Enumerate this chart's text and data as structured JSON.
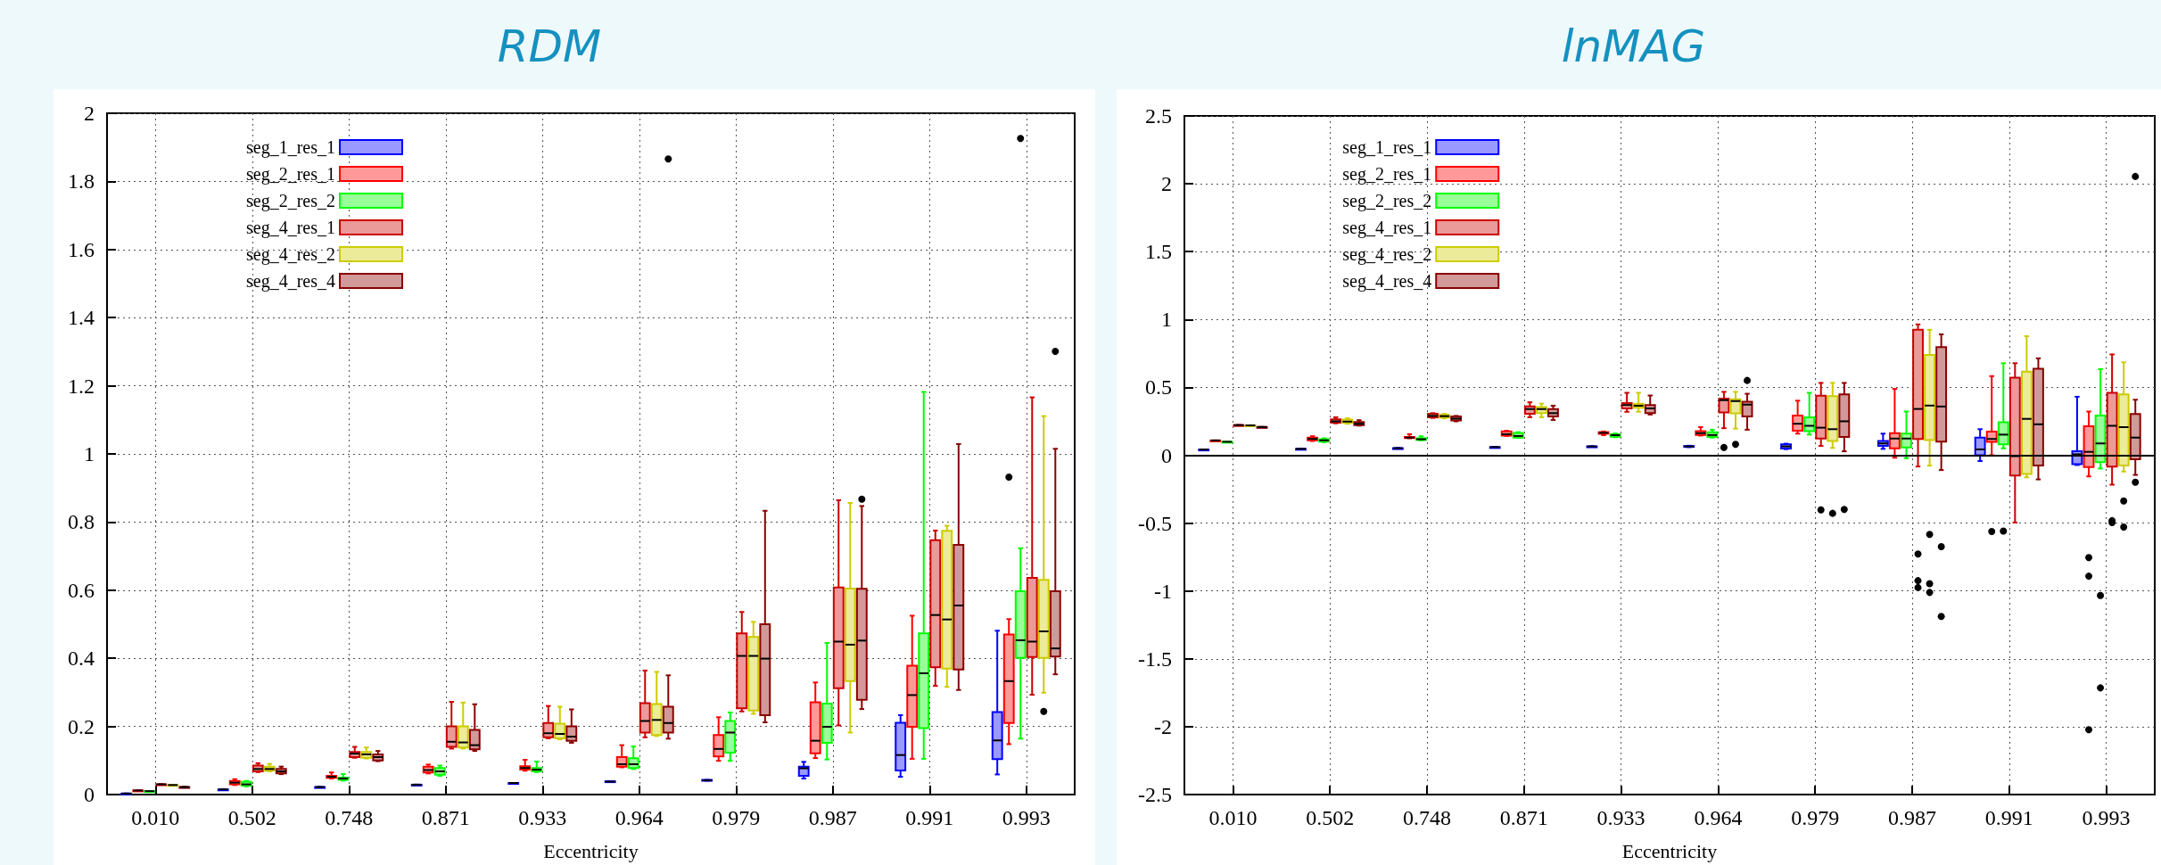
{
  "chart_data": [
    {
      "type": "box",
      "title": "RDM",
      "xlabel": "Eccentricity",
      "categories": [
        "0.010",
        "0.502",
        "0.748",
        "0.871",
        "0.933",
        "0.964",
        "0.979",
        "0.987",
        "0.991",
        "0.993"
      ],
      "ylim": [
        0,
        2
      ],
      "yticks": [
        0,
        0.2,
        0.4,
        0.6,
        0.8,
        1,
        1.2,
        1.4,
        1.6,
        1.8,
        2
      ],
      "grid": true,
      "legend": "top left",
      "series": [
        {
          "name": "seg_1_res_1",
          "color": "#0000ff",
          "boxes": [
            {
              "low": 0.003,
              "q1": 0.003,
              "median": 0.003,
              "q3": 0.003,
              "high": 0.003
            },
            {
              "low": 0.015,
              "q1": 0.015,
              "median": 0.015,
              "q3": 0.015,
              "high": 0.015
            },
            {
              "low": 0.022,
              "q1": 0.022,
              "median": 0.022,
              "q3": 0.022,
              "high": 0.022
            },
            {
              "low": 0.029,
              "q1": 0.029,
              "median": 0.029,
              "q3": 0.029,
              "high": 0.029
            },
            {
              "low": 0.034,
              "q1": 0.034,
              "median": 0.034,
              "q3": 0.034,
              "high": 0.034
            },
            {
              "low": 0.037,
              "q1": 0.037,
              "median": 0.038,
              "q3": 0.039,
              "high": 0.039
            },
            {
              "low": 0.041,
              "q1": 0.041,
              "median": 0.042,
              "q3": 0.043,
              "high": 0.043
            },
            {
              "low": 0.047,
              "q1": 0.055,
              "median": 0.077,
              "q3": 0.082,
              "high": 0.096
            },
            {
              "low": 0.052,
              "q1": 0.071,
              "median": 0.116,
              "q3": 0.211,
              "high": 0.233
            },
            {
              "low": 0.059,
              "q1": 0.104,
              "median": 0.159,
              "q3": 0.242,
              "high": 0.481
            }
          ]
        },
        {
          "name": "seg_2_res_1",
          "color": "#ff0000",
          "boxes": [
            {
              "low": 0.012,
              "q1": 0.012,
              "median": 0.012,
              "q3": 0.012,
              "high": 0.012
            },
            {
              "low": 0.028,
              "q1": 0.03,
              "median": 0.035,
              "q3": 0.04,
              "high": 0.045
            },
            {
              "low": 0.047,
              "q1": 0.049,
              "median": 0.052,
              "q3": 0.055,
              "high": 0.065
            },
            {
              "low": 0.062,
              "q1": 0.065,
              "median": 0.072,
              "q3": 0.082,
              "high": 0.088
            },
            {
              "low": 0.07,
              "q1": 0.073,
              "median": 0.078,
              "q3": 0.083,
              "high": 0.102
            },
            {
              "low": 0.08,
              "q1": 0.082,
              "median": 0.089,
              "q3": 0.11,
              "high": 0.145
            },
            {
              "low": 0.099,
              "q1": 0.112,
              "median": 0.134,
              "q3": 0.175,
              "high": 0.227
            },
            {
              "low": 0.107,
              "q1": 0.121,
              "median": 0.158,
              "q3": 0.271,
              "high": 0.329
            },
            {
              "low": 0.105,
              "q1": 0.199,
              "median": 0.292,
              "q3": 0.378,
              "high": 0.525
            },
            {
              "low": 0.148,
              "q1": 0.21,
              "median": 0.333,
              "q3": 0.47,
              "high": 0.515,
              "outliers": [
                0.932
              ]
            }
          ]
        },
        {
          "name": "seg_2_res_2",
          "color": "#00ff00",
          "boxes": [
            {
              "low": 0.01,
              "q1": 0.01,
              "median": 0.01,
              "q3": 0.01,
              "high": 0.01
            },
            {
              "low": 0.024,
              "q1": 0.026,
              "median": 0.03,
              "q3": 0.037,
              "high": 0.04
            },
            {
              "low": 0.041,
              "q1": 0.043,
              "median": 0.047,
              "q3": 0.05,
              "high": 0.06
            },
            {
              "low": 0.055,
              "q1": 0.058,
              "median": 0.068,
              "q3": 0.078,
              "high": 0.085
            },
            {
              "low": 0.066,
              "q1": 0.068,
              "median": 0.073,
              "q3": 0.078,
              "high": 0.097
            },
            {
              "low": 0.075,
              "q1": 0.078,
              "median": 0.089,
              "q3": 0.107,
              "high": 0.141
            },
            {
              "low": 0.099,
              "q1": 0.123,
              "median": 0.182,
              "q3": 0.216,
              "high": 0.241
            },
            {
              "low": 0.103,
              "q1": 0.152,
              "median": 0.199,
              "q3": 0.267,
              "high": 0.445
            },
            {
              "low": 0.105,
              "q1": 0.195,
              "median": 0.356,
              "q3": 0.473,
              "high": 1.182
            },
            {
              "low": 0.164,
              "q1": 0.401,
              "median": 0.453,
              "q3": 0.597,
              "high": 0.723,
              "outliers": [
                1.926
              ]
            }
          ]
        },
        {
          "name": "seg_4_res_1",
          "color": "#cc0000",
          "boxes": [
            {
              "low": 0.03,
              "q1": 0.03,
              "median": 0.03,
              "q3": 0.03,
              "high": 0.03
            },
            {
              "low": 0.066,
              "q1": 0.068,
              "median": 0.075,
              "q3": 0.085,
              "high": 0.092
            },
            {
              "low": 0.108,
              "q1": 0.11,
              "median": 0.12,
              "q3": 0.125,
              "high": 0.14
            },
            {
              "low": 0.135,
              "q1": 0.14,
              "median": 0.155,
              "q3": 0.2,
              "high": 0.272
            },
            {
              "low": 0.165,
              "q1": 0.168,
              "median": 0.18,
              "q3": 0.21,
              "high": 0.26
            },
            {
              "low": 0.168,
              "q1": 0.182,
              "median": 0.216,
              "q3": 0.268,
              "high": 0.364
            },
            {
              "low": 0.244,
              "q1": 0.253,
              "median": 0.407,
              "q3": 0.473,
              "high": 0.536
            },
            {
              "low": 0.203,
              "q1": 0.312,
              "median": 0.449,
              "q3": 0.608,
              "high": 0.864
            },
            {
              "low": 0.319,
              "q1": 0.374,
              "median": 0.527,
              "q3": 0.747,
              "high": 0.775
            },
            {
              "low": 0.293,
              "q1": 0.404,
              "median": 0.449,
              "q3": 0.636,
              "high": 1.166
            }
          ]
        },
        {
          "name": "seg_4_res_2",
          "color": "#cccc00",
          "boxes": [
            {
              "low": 0.028,
              "q1": 0.028,
              "median": 0.028,
              "q3": 0.028,
              "high": 0.028
            },
            {
              "low": 0.068,
              "q1": 0.07,
              "median": 0.075,
              "q3": 0.082,
              "high": 0.09
            },
            {
              "low": 0.106,
              "q1": 0.108,
              "median": 0.118,
              "q3": 0.125,
              "high": 0.138
            },
            {
              "low": 0.135,
              "q1": 0.138,
              "median": 0.153,
              "q3": 0.2,
              "high": 0.27
            },
            {
              "low": 0.162,
              "q1": 0.165,
              "median": 0.178,
              "q3": 0.208,
              "high": 0.258
            },
            {
              "low": 0.172,
              "q1": 0.175,
              "median": 0.219,
              "q3": 0.266,
              "high": 0.36
            },
            {
              "low": 0.237,
              "q1": 0.247,
              "median": 0.407,
              "q3": 0.463,
              "high": 0.507
            },
            {
              "low": 0.182,
              "q1": 0.333,
              "median": 0.44,
              "q3": 0.605,
              "high": 0.856
            },
            {
              "low": 0.316,
              "q1": 0.37,
              "median": 0.514,
              "q3": 0.774,
              "high": 0.789
            },
            {
              "low": 0.299,
              "q1": 0.401,
              "median": 0.479,
              "q3": 0.63,
              "high": 1.111,
              "outliers": [
                0.244
              ]
            }
          ]
        },
        {
          "name": "seg_4_res_4",
          "color": "#8b0000",
          "boxes": [
            {
              "low": 0.022,
              "q1": 0.022,
              "median": 0.022,
              "q3": 0.022,
              "high": 0.022
            },
            {
              "low": 0.06,
              "q1": 0.062,
              "median": 0.068,
              "q3": 0.075,
              "high": 0.082
            },
            {
              "low": 0.098,
              "q1": 0.1,
              "median": 0.11,
              "q3": 0.118,
              "high": 0.128
            },
            {
              "low": 0.128,
              "q1": 0.133,
              "median": 0.145,
              "q3": 0.19,
              "high": 0.265
            },
            {
              "low": 0.152,
              "q1": 0.158,
              "median": 0.17,
              "q3": 0.2,
              "high": 0.25
            },
            {
              "low": 0.164,
              "q1": 0.182,
              "median": 0.21,
              "q3": 0.258,
              "high": 0.35,
              "outliers": [
                1.866
              ]
            },
            {
              "low": 0.212,
              "q1": 0.233,
              "median": 0.399,
              "q3": 0.5,
              "high": 0.833
            },
            {
              "low": 0.251,
              "q1": 0.278,
              "median": 0.452,
              "q3": 0.604,
              "high": 0.847,
              "outliers": [
                0.867
              ]
            },
            {
              "low": 0.307,
              "q1": 0.367,
              "median": 0.555,
              "q3": 0.733,
              "high": 1.029
            },
            {
              "low": 0.353,
              "q1": 0.405,
              "median": 0.429,
              "q3": 0.597,
              "high": 1.015,
              "outliers": [
                1.301
              ]
            }
          ]
        }
      ]
    },
    {
      "type": "box",
      "title": "lnMAG",
      "xlabel": "Eccentricity",
      "categories": [
        "0.010",
        "0.502",
        "0.748",
        "0.871",
        "0.933",
        "0.964",
        "0.979",
        "0.987",
        "0.991",
        "0.993"
      ],
      "ylim": [
        -2.5,
        2.5
      ],
      "yticks": [
        -2.5,
        -2,
        -1.5,
        -1,
        -0.5,
        0,
        0.5,
        1,
        1.5,
        2,
        2.5
      ],
      "grid": true,
      "legend": "top left",
      "ref_lines": [
        {
          "axis": "y",
          "value": 0,
          "color": "#000000",
          "line_style": "solid"
        }
      ],
      "series": [
        {
          "name": "seg_1_res_1",
          "color": "#0000ff",
          "boxes": [
            {
              "low": 0.042,
              "q1": 0.042,
              "median": 0.042,
              "q3": 0.042,
              "high": 0.042
            },
            {
              "low": 0.047,
              "q1": 0.047,
              "median": 0.047,
              "q3": 0.047,
              "high": 0.047
            },
            {
              "low": 0.052,
              "q1": 0.052,
              "median": 0.052,
              "q3": 0.052,
              "high": 0.052
            },
            {
              "low": 0.06,
              "q1": 0.06,
              "median": 0.06,
              "q3": 0.06,
              "high": 0.06
            },
            {
              "low": 0.065,
              "q1": 0.065,
              "median": 0.065,
              "q3": 0.065,
              "high": 0.065
            },
            {
              "low": 0.06,
              "q1": 0.062,
              "median": 0.065,
              "q3": 0.068,
              "high": 0.07
            },
            {
              "low": 0.045,
              "q1": 0.05,
              "median": 0.065,
              "q3": 0.08,
              "high": 0.085
            },
            {
              "low": 0.047,
              "q1": 0.069,
              "median": 0.087,
              "q3": 0.105,
              "high": 0.159
            },
            {
              "low": -0.043,
              "q1": 0,
              "median": 0.043,
              "q3": 0.13,
              "high": 0.192
            },
            {
              "low": -0.072,
              "q1": -0.065,
              "median": 0.007,
              "q3": 0.029,
              "high": 0.431
            }
          ]
        },
        {
          "name": "seg_2_res_1",
          "color": "#ff0000",
          "boxes": [
            {
              "low": 0.109,
              "q1": 0.109,
              "median": 0.109,
              "q3": 0.109,
              "high": 0.109
            },
            {
              "low": 0.105,
              "q1": 0.11,
              "median": 0.12,
              "q3": 0.13,
              "high": 0.14
            },
            {
              "low": 0.125,
              "q1": 0.127,
              "median": 0.13,
              "q3": 0.135,
              "high": 0.155
            },
            {
              "low": 0.143,
              "q1": 0.145,
              "median": 0.155,
              "q3": 0.175,
              "high": 0.18
            },
            {
              "low": 0.148,
              "q1": 0.158,
              "median": 0.165,
              "q3": 0.17,
              "high": 0.175
            },
            {
              "low": 0.145,
              "q1": 0.149,
              "median": 0.163,
              "q3": 0.178,
              "high": 0.207
            },
            {
              "low": 0.159,
              "q1": 0.181,
              "median": 0.232,
              "q3": 0.293,
              "high": 0.402
            },
            {
              "low": -0.018,
              "q1": 0.051,
              "median": 0.123,
              "q3": 0.163,
              "high": 0.489
            },
            {
              "low": 0,
              "q1": 0.098,
              "median": 0.12,
              "q3": 0.174,
              "high": 0.583,
              "outliers": [
                -0.562
              ]
            },
            {
              "low": -0.156,
              "q1": -0.087,
              "median": 0.025,
              "q3": 0.214,
              "high": 0.322,
              "outliers": [
                -0.754,
                -0.891,
                -2.022
              ]
            }
          ]
        },
        {
          "name": "seg_2_res_2",
          "color": "#00ff00",
          "boxes": [
            {
              "low": 0.099,
              "q1": 0.099,
              "median": 0.099,
              "q3": 0.099,
              "high": 0.099
            },
            {
              "low": 0.097,
              "q1": 0.1,
              "median": 0.11,
              "q3": 0.118,
              "high": 0.125
            },
            {
              "low": 0.11,
              "q1": 0.113,
              "median": 0.118,
              "q3": 0.125,
              "high": 0.14
            },
            {
              "low": 0.128,
              "q1": 0.13,
              "median": 0.142,
              "q3": 0.165,
              "high": 0.17
            },
            {
              "low": 0.133,
              "q1": 0.137,
              "median": 0.148,
              "q3": 0.155,
              "high": 0.16
            },
            {
              "low": 0.13,
              "q1": 0.134,
              "median": 0.149,
              "q3": 0.17,
              "high": 0.188
            },
            {
              "low": 0.152,
              "q1": 0.178,
              "median": 0.217,
              "q3": 0.279,
              "high": 0.46
            },
            {
              "low": -0.022,
              "q1": 0.058,
              "median": 0.123,
              "q3": 0.159,
              "high": 0.322
            },
            {
              "low": 0.051,
              "q1": 0.08,
              "median": 0.152,
              "q3": 0.243,
              "high": 0.678,
              "outliers": [
                -0.558
              ]
            },
            {
              "low": -0.098,
              "q1": -0.051,
              "median": 0.087,
              "q3": 0.293,
              "high": 0.634,
              "outliers": [
                -1.033,
                -1.714
              ]
            }
          ]
        },
        {
          "name": "seg_4_res_1",
          "color": "#cc0000",
          "boxes": [
            {
              "low": 0.222,
              "q1": 0.222,
              "median": 0.222,
              "q3": 0.222,
              "high": 0.222
            },
            {
              "low": 0.235,
              "q1": 0.24,
              "median": 0.25,
              "q3": 0.265,
              "high": 0.28
            },
            {
              "low": 0.275,
              "q1": 0.28,
              "median": 0.29,
              "q3": 0.305,
              "high": 0.31
            },
            {
              "low": 0.28,
              "q1": 0.305,
              "median": 0.34,
              "q3": 0.36,
              "high": 0.39
            },
            {
              "low": 0.32,
              "q1": 0.345,
              "median": 0.37,
              "q3": 0.385,
              "high": 0.46
            },
            {
              "low": 0.199,
              "q1": 0.315,
              "median": 0.406,
              "q3": 0.417,
              "high": 0.467,
              "outliers": [
                0.058
              ]
            },
            {
              "low": 0.069,
              "q1": 0.123,
              "median": 0.203,
              "q3": 0.438,
              "high": 0.533,
              "outliers": [
                -0.402
              ]
            },
            {
              "low": -0.083,
              "q1": 0.12,
              "median": 0.341,
              "q3": 0.924,
              "high": 0.964,
              "outliers": [
                -0.728,
                -0.924,
                -0.975
              ]
            },
            {
              "low": -0.496,
              "q1": -0.149,
              "median": -0.007,
              "q3": 0.572,
              "high": 0.678
            },
            {
              "low": -0.217,
              "q1": -0.083,
              "median": 0.217,
              "q3": 0.46,
              "high": 0.743,
              "outliers": [
                -0.482,
                -0.496
              ]
            }
          ]
        },
        {
          "name": "seg_4_res_2",
          "color": "#cccc00",
          "boxes": [
            {
              "low": 0.22,
              "q1": 0.22,
              "median": 0.22,
              "q3": 0.22,
              "high": 0.22
            },
            {
              "low": 0.232,
              "q1": 0.238,
              "median": 0.248,
              "q3": 0.262,
              "high": 0.272
            },
            {
              "low": 0.272,
              "q1": 0.278,
              "median": 0.288,
              "q3": 0.298,
              "high": 0.305
            },
            {
              "low": 0.28,
              "q1": 0.31,
              "median": 0.34,
              "q3": 0.355,
              "high": 0.38
            },
            {
              "low": 0.32,
              "q1": 0.35,
              "median": 0.365,
              "q3": 0.38,
              "high": 0.46
            },
            {
              "low": 0.196,
              "q1": 0.308,
              "median": 0.399,
              "q3": 0.413,
              "high": 0.467,
              "outliers": [
                0.08
              ]
            },
            {
              "low": 0.054,
              "q1": 0.105,
              "median": 0.192,
              "q3": 0.435,
              "high": 0.533,
              "outliers": [
                -0.428
              ]
            },
            {
              "low": -0.076,
              "q1": 0.112,
              "median": 0.366,
              "q3": 0.739,
              "high": 0.924,
              "outliers": [
                -0.583,
                -0.946,
                -1.011
              ]
            },
            {
              "low": -0.163,
              "q1": -0.138,
              "median": 0.268,
              "q3": 0.616,
              "high": 0.877
            },
            {
              "low": -0.12,
              "q1": -0.076,
              "median": 0.207,
              "q3": 0.449,
              "high": 0.685,
              "outliers": [
                -0.337,
                -0.529
              ]
            }
          ]
        },
        {
          "name": "seg_4_res_4",
          "color": "#8b0000",
          "boxes": [
            {
              "low": 0.208,
              "q1": 0.208,
              "median": 0.208,
              "q3": 0.208,
              "high": 0.208
            },
            {
              "low": 0.218,
              "q1": 0.222,
              "median": 0.232,
              "q3": 0.245,
              "high": 0.258
            },
            {
              "low": 0.25,
              "q1": 0.257,
              "median": 0.27,
              "q3": 0.285,
              "high": 0.29
            },
            {
              "low": 0.26,
              "q1": 0.285,
              "median": 0.31,
              "q3": 0.34,
              "high": 0.365
            },
            {
              "low": 0.3,
              "q1": 0.31,
              "median": 0.345,
              "q3": 0.37,
              "high": 0.44
            },
            {
              "low": 0.188,
              "q1": 0.286,
              "median": 0.373,
              "q3": 0.395,
              "high": 0.453,
              "outliers": [
                0.551
              ]
            },
            {
              "low": 0.029,
              "q1": 0.134,
              "median": 0.25,
              "q3": 0.449,
              "high": 0.533,
              "outliers": [
                -0.399
              ]
            },
            {
              "low": -0.109,
              "q1": 0.101,
              "median": 0.359,
              "q3": 0.797,
              "high": 0.891,
              "outliers": [
                -0.674,
                -1.188
              ]
            },
            {
              "low": -0.178,
              "q1": -0.076,
              "median": 0.228,
              "q3": 0.638,
              "high": 0.714
            },
            {
              "low": -0.145,
              "q1": -0.029,
              "median": 0.13,
              "q3": 0.304,
              "high": 0.409,
              "outliers": [
                -0.199,
                2.054
              ]
            }
          ]
        }
      ]
    }
  ]
}
